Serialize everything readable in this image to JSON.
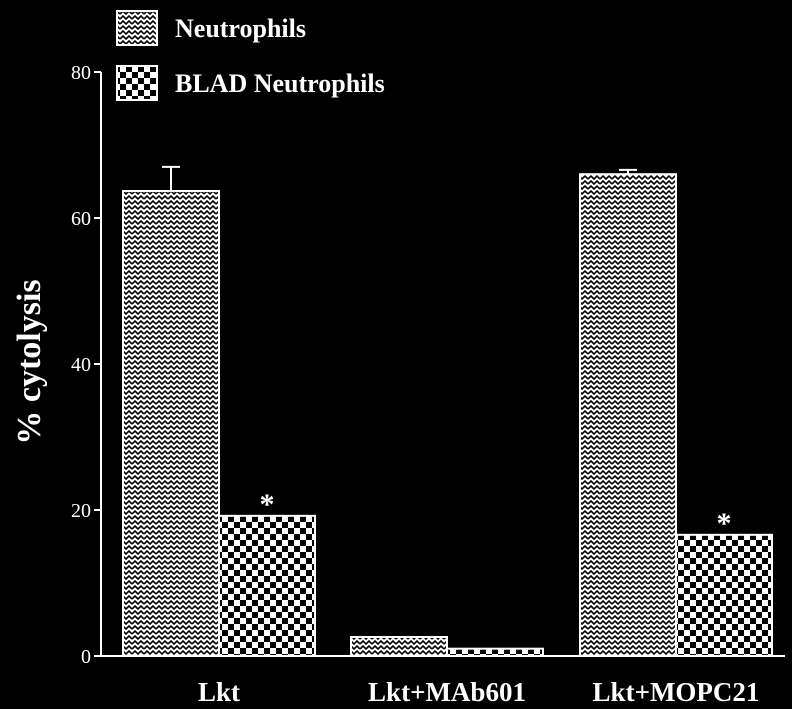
{
  "chart_data": {
    "type": "bar",
    "title": "",
    "xlabel": "",
    "ylabel": "% cytolysis",
    "ylim": [
      0,
      80
    ],
    "yticks": [
      0,
      20,
      40,
      60,
      80
    ],
    "grid": false,
    "legend_position": "top-left",
    "categories": [
      "Lkt",
      "Lkt+MAb601",
      "Lkt+MOPC21"
    ],
    "series": [
      {
        "name": "Neutrophils",
        "pattern": "zigzag",
        "values": [
          63.7,
          2.6,
          66.0
        ],
        "error": [
          3.3,
          0,
          0.6
        ],
        "annotations": [
          "",
          "",
          ""
        ]
      },
      {
        "name": "BLAD Neutrophils",
        "pattern": "checker",
        "values": [
          19.2,
          1.0,
          16.6
        ],
        "error": [
          0,
          0,
          0
        ],
        "annotations": [
          "*",
          "",
          "*"
        ]
      }
    ],
    "colors": {
      "background": "#000000",
      "foreground": "#ffffff"
    }
  }
}
